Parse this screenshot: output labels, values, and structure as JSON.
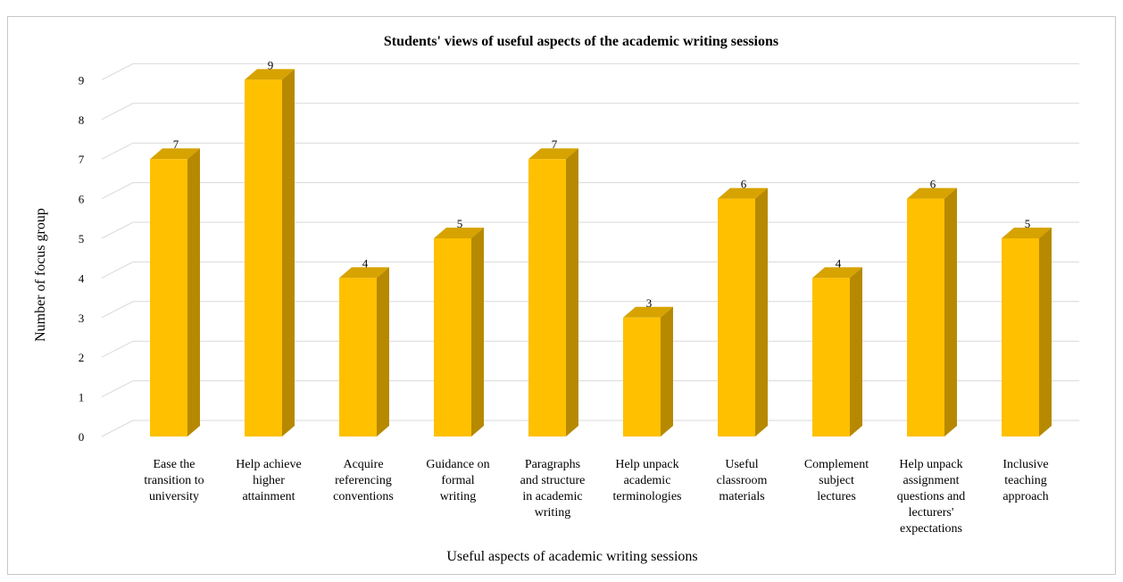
{
  "top_caption": "",
  "chart_data": {
    "type": "bar",
    "title": "Students' views of useful aspects of the academic writing sessions",
    "xlabel": "Useful aspects of academic writing sessions",
    "ylabel": "Number of focus group",
    "ylim": [
      0,
      9
    ],
    "yticks": [
      0,
      1,
      2,
      3,
      4,
      5,
      6,
      7,
      8,
      9
    ],
    "grid": true,
    "legend": "none",
    "bar_color": "#FFC000",
    "bar_side_color": "#B78900",
    "bar_top_color": "#D7A300",
    "categories": [
      [
        "Ease the",
        "transition to",
        "university"
      ],
      [
        "Help achieve",
        "higher",
        "attainment"
      ],
      [
        "Acquire",
        "referencing",
        "conventions"
      ],
      [
        "Guidance on",
        "formal",
        "writing"
      ],
      [
        "Paragraphs",
        "and structure",
        "in academic",
        "writing"
      ],
      [
        "Help unpack",
        "academic",
        "terminologies"
      ],
      [
        "Useful",
        "classroom",
        "materials"
      ],
      [
        "Complement",
        "subject",
        "lectures"
      ],
      [
        "Help unpack",
        "assignment",
        "questions and",
        "lecturers'",
        "expectations"
      ],
      [
        "Inclusive",
        "teaching",
        "approach"
      ]
    ],
    "values": [
      7,
      9,
      4,
      5,
      7,
      3,
      6,
      4,
      6,
      5
    ]
  }
}
